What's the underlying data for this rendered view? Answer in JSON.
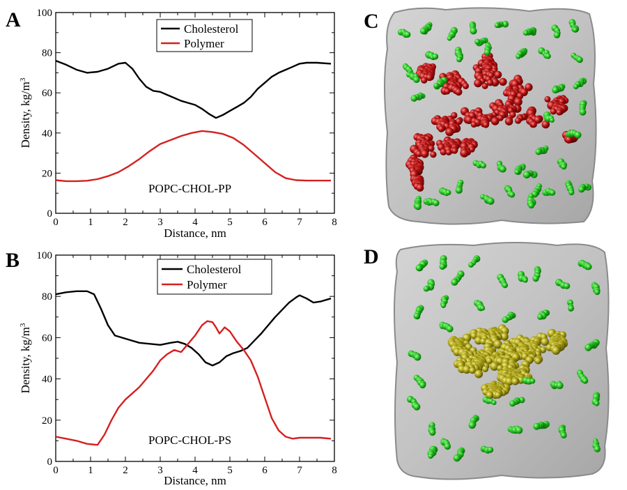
{
  "panel_labels": [
    "A",
    "B",
    "C",
    "D"
  ],
  "colors": {
    "cholesterol": "#000000",
    "polymer": "#d42020",
    "membrane": "#bdbdbd",
    "cholesterol_molecules": "#19b019",
    "polymer_PP": "#a50f0f",
    "polymer_PS": "#a8a015"
  },
  "images": {
    "C": {
      "description_icon": "membrane-top-view-red-polymer"
    },
    "D": {
      "description_icon": "membrane-top-view-yellow-polymer"
    }
  },
  "chart_data": [
    {
      "panel": "A",
      "type": "line",
      "annotation": "POPC-CHOL-PP",
      "xlabel": "Distance, nm",
      "ylabel": "Density, kg/m",
      "ylabel_sup": "3",
      "xlim": [
        0,
        8
      ],
      "ylim": [
        0,
        100
      ],
      "xticks": [
        0,
        1,
        2,
        3,
        4,
        5,
        6,
        7,
        8
      ],
      "yticks": [
        0,
        20,
        40,
        60,
        80,
        100
      ],
      "grid": false,
      "legend_position": "top-center",
      "series": [
        {
          "name": "Cholesterol",
          "color": "#000000",
          "points": [
            [
              0,
              76
            ],
            [
              0.3,
              74
            ],
            [
              0.6,
              71.5
            ],
            [
              0.9,
              70
            ],
            [
              1.2,
              70.5
            ],
            [
              1.5,
              72
            ],
            [
              1.8,
              74.5
            ],
            [
              2.0,
              75
            ],
            [
              2.2,
              72
            ],
            [
              2.4,
              67
            ],
            [
              2.6,
              63
            ],
            [
              2.8,
              61
            ],
            [
              3.0,
              60.5
            ],
            [
              3.2,
              59
            ],
            [
              3.4,
              57.5
            ],
            [
              3.6,
              56
            ],
            [
              3.8,
              55
            ],
            [
              4.0,
              54
            ],
            [
              4.2,
              52
            ],
            [
              4.4,
              49.5
            ],
            [
              4.6,
              47.5
            ],
            [
              4.8,
              49
            ],
            [
              5.0,
              51
            ],
            [
              5.2,
              53
            ],
            [
              5.4,
              55
            ],
            [
              5.6,
              58
            ],
            [
              5.8,
              62
            ],
            [
              6.0,
              65
            ],
            [
              6.2,
              68
            ],
            [
              6.4,
              70
            ],
            [
              6.6,
              71.5
            ],
            [
              6.8,
              73
            ],
            [
              7.0,
              74.5
            ],
            [
              7.2,
              75
            ],
            [
              7.5,
              75
            ],
            [
              7.9,
              74.5
            ]
          ]
        },
        {
          "name": "Polymer",
          "color": "#d42020",
          "points": [
            [
              0,
              16.5
            ],
            [
              0.3,
              16
            ],
            [
              0.6,
              16
            ],
            [
              0.9,
              16.2
            ],
            [
              1.2,
              17
            ],
            [
              1.5,
              18.5
            ],
            [
              1.8,
              20.5
            ],
            [
              2.1,
              23.5
            ],
            [
              2.4,
              27
            ],
            [
              2.7,
              31
            ],
            [
              3.0,
              34.5
            ],
            [
              3.3,
              36.5
            ],
            [
              3.6,
              38.5
            ],
            [
              3.9,
              40
            ],
            [
              4.2,
              41
            ],
            [
              4.5,
              40.5
            ],
            [
              4.8,
              39.5
            ],
            [
              5.1,
              37.5
            ],
            [
              5.4,
              34
            ],
            [
              5.7,
              29.5
            ],
            [
              6.0,
              25
            ],
            [
              6.3,
              20.5
            ],
            [
              6.6,
              17.5
            ],
            [
              6.9,
              16.5
            ],
            [
              7.2,
              16.3
            ],
            [
              7.5,
              16.3
            ],
            [
              7.9,
              16.3
            ]
          ]
        }
      ]
    },
    {
      "panel": "B",
      "type": "line",
      "annotation": "POPC-CHOL-PS",
      "xlabel": "Distance, nm",
      "ylabel": "Density, kg/m",
      "ylabel_sup": "3",
      "xlim": [
        0,
        8
      ],
      "ylim": [
        0,
        100
      ],
      "xticks": [
        0,
        1,
        2,
        3,
        4,
        5,
        6,
        7,
        8
      ],
      "yticks": [
        0,
        20,
        40,
        60,
        80,
        100
      ],
      "grid": false,
      "legend_position": "top-right",
      "series": [
        {
          "name": "Cholesterol",
          "color": "#000000",
          "points": [
            [
              0,
              81
            ],
            [
              0.3,
              82
            ],
            [
              0.6,
              82.5
            ],
            [
              0.9,
              82.5
            ],
            [
              1.1,
              81
            ],
            [
              1.3,
              74
            ],
            [
              1.5,
              66
            ],
            [
              1.7,
              61
            ],
            [
              1.9,
              60
            ],
            [
              2.1,
              59
            ],
            [
              2.4,
              57.5
            ],
            [
              2.7,
              57
            ],
            [
              3.0,
              56.5
            ],
            [
              3.3,
              57.5
            ],
            [
              3.5,
              58
            ],
            [
              3.7,
              57
            ],
            [
              3.9,
              55
            ],
            [
              4.1,
              52
            ],
            [
              4.3,
              48
            ],
            [
              4.5,
              46.5
            ],
            [
              4.7,
              48
            ],
            [
              4.9,
              51
            ],
            [
              5.1,
              52.5
            ],
            [
              5.3,
              53.5
            ],
            [
              5.5,
              55
            ],
            [
              5.7,
              58.5
            ],
            [
              5.9,
              62
            ],
            [
              6.1,
              66
            ],
            [
              6.3,
              70
            ],
            [
              6.5,
              73.5
            ],
            [
              6.7,
              77
            ],
            [
              6.9,
              79.5
            ],
            [
              7.0,
              80.5
            ],
            [
              7.2,
              79
            ],
            [
              7.4,
              77
            ],
            [
              7.6,
              77.5
            ],
            [
              7.9,
              79
            ]
          ]
        },
        {
          "name": "Polymer",
          "color": "#d42020",
          "points": [
            [
              0,
              12
            ],
            [
              0.3,
              11
            ],
            [
              0.6,
              10
            ],
            [
              0.9,
              8.5
            ],
            [
              1.2,
              8
            ],
            [
              1.4,
              13
            ],
            [
              1.6,
              20
            ],
            [
              1.8,
              26
            ],
            [
              2.0,
              30
            ],
            [
              2.2,
              33
            ],
            [
              2.4,
              36
            ],
            [
              2.6,
              40
            ],
            [
              2.8,
              44
            ],
            [
              3.0,
              49
            ],
            [
              3.2,
              52
            ],
            [
              3.4,
              54
            ],
            [
              3.6,
              53
            ],
            [
              3.8,
              57
            ],
            [
              4.0,
              61
            ],
            [
              4.2,
              66
            ],
            [
              4.35,
              68
            ],
            [
              4.5,
              67.5
            ],
            [
              4.6,
              65
            ],
            [
              4.7,
              62
            ],
            [
              4.85,
              65
            ],
            [
              5.0,
              63
            ],
            [
              5.2,
              58
            ],
            [
              5.4,
              54
            ],
            [
              5.6,
              49
            ],
            [
              5.8,
              41
            ],
            [
              6.0,
              31
            ],
            [
              6.2,
              21
            ],
            [
              6.4,
              15
            ],
            [
              6.6,
              12
            ],
            [
              6.8,
              11
            ],
            [
              7.0,
              11.5
            ],
            [
              7.3,
              11.5
            ],
            [
              7.6,
              11.5
            ],
            [
              7.9,
              11
            ]
          ]
        }
      ]
    }
  ]
}
